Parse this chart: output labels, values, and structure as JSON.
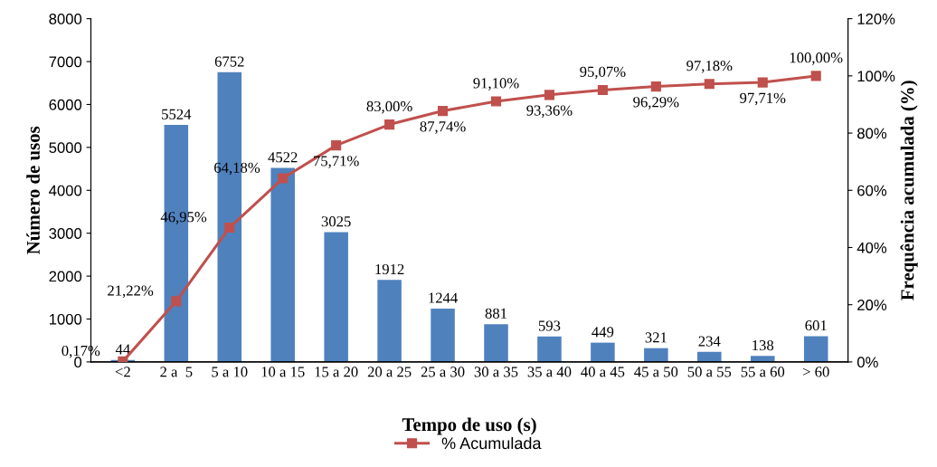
{
  "chart_data": {
    "type": "bar",
    "xlabel": "Tempo de uso (s)",
    "ylabel": "Número de usos",
    "y2label": "Frequência acumulada (%)",
    "categories": [
      "<2",
      "2 a  5",
      "5 a 10",
      "10 a 15",
      "15 a 20",
      "20 a 25",
      "25 a 30",
      "30 a 35",
      "35 a 40",
      "40 a 45",
      "45 a 50",
      "50 a 55",
      "55 a 60",
      "> 60"
    ],
    "series": [
      {
        "color": "#4f81bd",
        "values": [
          44,
          5524,
          6752,
          4522,
          3025,
          1912,
          1244,
          881,
          593,
          449,
          321,
          234,
          138,
          601
        ],
        "value_labels": [
          "44",
          "5524",
          "6752",
          "4522",
          "3025",
          "1912",
          "1244",
          "881",
          "593",
          "449",
          "321",
          "234",
          "138",
          "601"
        ]
      },
      {
        "type": "line",
        "axis": "y2",
        "name": "% Acumulada",
        "color": "#c0504d",
        "marker": "square",
        "values": [
          0.17,
          21.22,
          46.95,
          64.18,
          75.71,
          83.0,
          87.74,
          91.1,
          93.36,
          95.07,
          96.29,
          97.18,
          97.71,
          100.0
        ],
        "value_labels": [
          "0,17%",
          "21,22%",
          "46,95%",
          "64,18%",
          "75,71%",
          "83,00%",
          "87,74%",
          "91,10%",
          "93,36%",
          "95,07%",
          "96,29%",
          "97,18%",
          "97,71%",
          "100,00%"
        ]
      }
    ],
    "ylim": [
      0,
      8000
    ],
    "yticks": [
      0,
      1000,
      2000,
      3000,
      4000,
      5000,
      6000,
      7000,
      8000
    ],
    "y2lim": [
      0,
      120
    ],
    "y2ticks": [
      {
        "value": 0,
        "label": "0%"
      },
      {
        "value": 20,
        "label": "20%"
      },
      {
        "value": 40,
        "label": "40%"
      },
      {
        "value": 60,
        "label": "60%"
      },
      {
        "value": 80,
        "label": "80%"
      },
      {
        "value": 100,
        "label": "100%"
      },
      {
        "value": 120,
        "label": "120%"
      }
    ],
    "grid": false,
    "legend": "bottom"
  }
}
